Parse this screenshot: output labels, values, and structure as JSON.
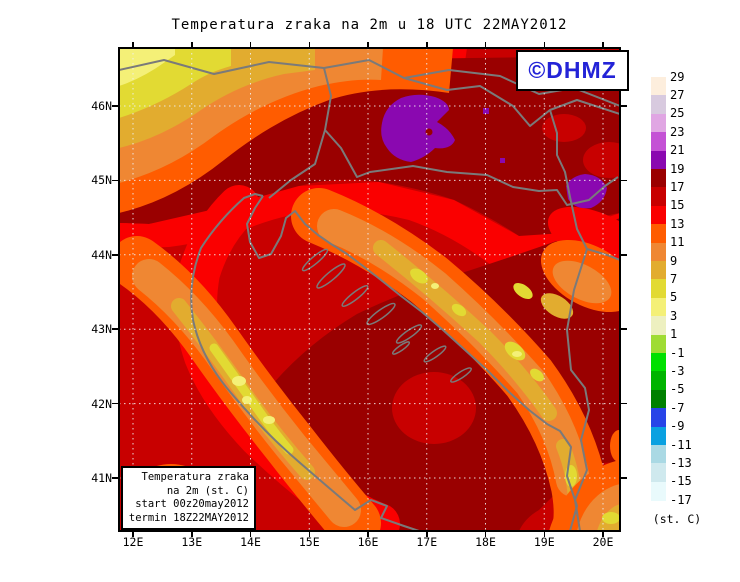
{
  "title": "Temperatura zraka na 2m u 18 UTC 22MAY2012",
  "watermark": {
    "text": "©DHMZ",
    "color": "#2323d7"
  },
  "info_box": {
    "lines": [
      "Temperatura zraka",
      "na 2m (st. C)",
      "start 00z20may2012",
      "termin 18Z22MAY2012"
    ]
  },
  "axes": {
    "lon_labels": [
      "12E",
      "13E",
      "14E",
      "15E",
      "16E",
      "17E",
      "18E",
      "19E",
      "20E"
    ],
    "lat_labels": [
      "46N",
      "45N",
      "44N",
      "43N",
      "42N",
      "41N"
    ]
  },
  "colorbar": {
    "unit": "(st. C)",
    "levels": [
      29,
      27,
      25,
      23,
      21,
      19,
      17,
      15,
      13,
      11,
      9,
      7,
      5,
      3,
      1,
      -1,
      -3,
      -5,
      -7,
      -9,
      -11,
      -13,
      -15,
      -17
    ],
    "colors": [
      "#fdeedd",
      "#d8cadf",
      "#e0a6e3",
      "#c451d5",
      "#8a08b0",
      "#9a0000",
      "#c80000",
      "#fa0000",
      "#ff5c00",
      "#ef8733",
      "#e2ac2f",
      "#e2da33",
      "#f4f077",
      "#edf0c0",
      "#9fdc34",
      "#00e000",
      "#00b400",
      "#008000",
      "#2844e8",
      "#0aa1e1",
      "#aad9e4",
      "#cfe9ee",
      "#e9fafc"
    ]
  },
  "map_colors": {
    "purple_19_21": "#8a08b0",
    "maroon_17_19": "#9a0000",
    "darkred_15_17": "#c80000",
    "red_13_15": "#fa0000",
    "orangered_11_13": "#ff5c00",
    "orange_9_11": "#ef8733",
    "gold_7_9": "#e2ac2f",
    "yellow_5_7": "#e2da33",
    "paleyellow_3_5": "#f4f077",
    "border_grey": "#7a7a7a",
    "grid_white": "#f0f0f0"
  },
  "chart_data": {
    "type": "heatmap",
    "title": "Temperatura zraka na 2m u 18 UTC 22MAY2012",
    "variable": "Temperatura zraka na 2m",
    "unit": "st. C",
    "valid_time": "18 UTC 22MAY2012",
    "model_start": "00z20may2012",
    "termin": "18Z22MAY2012",
    "x": {
      "label": "longitude",
      "ticks": [
        "12E",
        "13E",
        "14E",
        "15E",
        "16E",
        "17E",
        "18E",
        "19E",
        "20E"
      ],
      "range_deg_e": [
        11.8,
        20.3
      ]
    },
    "y": {
      "label": "latitude",
      "ticks": [
        "46N",
        "45N",
        "44N",
        "43N",
        "42N",
        "41N"
      ],
      "range_deg_n": [
        40.3,
        46.8
      ]
    },
    "colorbar_levels_c": [
      29,
      27,
      25,
      23,
      21,
      19,
      17,
      15,
      13,
      11,
      9,
      7,
      5,
      3,
      1,
      -1,
      -3,
      -5,
      -7,
      -9,
      -11,
      -13,
      -15,
      -17
    ],
    "colorbar_colors_top_to_bottom": [
      "#fdeedd",
      "#d8cadf",
      "#e0a6e3",
      "#c451d5",
      "#8a08b0",
      "#9a0000",
      "#c80000",
      "#fa0000",
      "#ff5c00",
      "#ef8733",
      "#e2ac2f",
      "#e2da33",
      "#f4f077",
      "#edf0c0",
      "#9fdc34",
      "#00e000",
      "#00b400",
      "#008000",
      "#2844e8",
      "#0aa1e1",
      "#aad9e4",
      "#cfe9ee",
      "#e9fafc"
    ],
    "visible_value_range_c": [
      3,
      21
    ],
    "grid": "dotted 1-degree lat/lon graticule",
    "legend_position": "right",
    "observed_features": [
      "Warmest spot 19-21 st. C (purple) over NW Croatia near 16.5-17.5E / 45.3-46.1N",
      "Second 19-21 st. C purple patch near 19.3E / 45.2N",
      "Broad 17-19 st. C (dark maroon) over Pannonian plain, NE corner and central/southern Adriatic",
      "North Adriatic mostly 15-17 st. C with 13-15 st. C band along Italian coast",
      "Cold 3-9 st. C (yellow/gold/orange) bands over the Alps (NW corner), Apennines and Dinaric mountains",
      "Small cold patch 5-9 st. C in SE corner (Albanian mountains)"
    ]
  }
}
